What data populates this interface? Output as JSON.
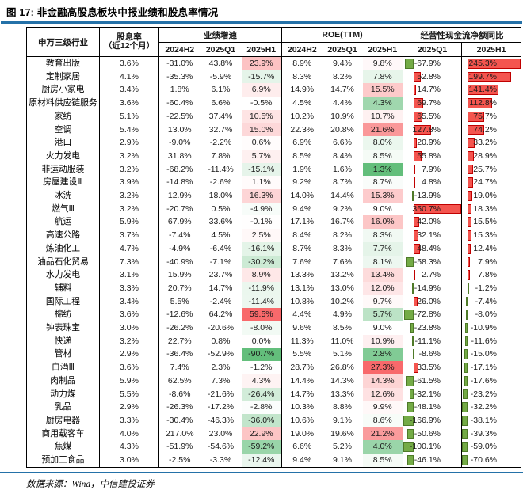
{
  "figure": {
    "title": "图 17: 非金融高股息板块中报业绩和股息率情况",
    "source": "数据来源：Wind，中信建投证券"
  },
  "table": {
    "header": {
      "industry": "申万三级行业",
      "yield_line1": "股息率",
      "yield_line2": "（近12个月）",
      "growth_group": "业绩增速",
      "roe_group": "ROE(TTM)",
      "cashflow_group": "经营性现金流净额同比",
      "growth_periods": [
        "2024H2",
        "2025Q1",
        "2025H1"
      ],
      "roe_periods": [
        "2024H2",
        "2025Q1",
        "2025H1"
      ],
      "cashflow_periods": [
        "2025Q1",
        "2025H1"
      ]
    }
  },
  "colors": {
    "rule_blue": "#2471A8",
    "scale_high": "#F8696B",
    "scale_mid": "#FFFFFF",
    "scale_low": "#63BE7B",
    "bar_positive_fill": "#F4554F",
    "bar_positive_border": "#C00000",
    "bar_negative_fill": "#74AB46",
    "bar_negative_border": "#4E7A28",
    "bar_axis": "#8a8a8a"
  },
  "chart_data": {
    "type": "table",
    "title": "图 17: 非金融高股息板块中报业绩和股息率情况",
    "columns": [
      "申万三级行业",
      "股息率（近12个月）",
      "业绩增速 2024H2",
      "业绩增速 2025Q1",
      "业绩增速 2025H1",
      "ROE(TTM) 2024H2",
      "ROE(TTM) 2025Q1",
      "ROE(TTM) 2025H1",
      "经营性现金流净额同比 2025Q1",
      "经营性现金流净额同比 2025H1"
    ],
    "unit": "%",
    "conditional_formatting": {
      "color_scale_columns": [
        "业绩增速 2025H1",
        "ROE(TTM) 2025H1"
      ],
      "data_bar_columns": [
        "经营性现金流净额同比 2025Q1",
        "经营性现金流净额同比 2025H1"
      ]
    },
    "rows": [
      {
        "name": "教育出版",
        "yield": 3.6,
        "growth": [
          -31.0,
          43.8,
          23.9
        ],
        "roe": [
          8.9,
          9.4,
          9.8
        ],
        "cash": [
          -67.9,
          245.3
        ]
      },
      {
        "name": "定制家居",
        "yield": 4.1,
        "growth": [
          -35.3,
          -5.9,
          -15.7
        ],
        "roe": [
          8.3,
          8.2,
          7.8
        ],
        "cash": [
          52.8,
          199.7
        ]
      },
      {
        "name": "厨房小家电",
        "yield": 3.4,
        "growth": [
          1.8,
          6.1,
          6.9
        ],
        "roe": [
          14.9,
          14.7,
          15.5
        ],
        "cash": [
          14.7,
          141.4
        ]
      },
      {
        "name": "原材料供应链服务",
        "yield": 3.6,
        "growth": [
          -60.4,
          6.6,
          -0.5
        ],
        "roe": [
          4.5,
          4.4,
          4.3
        ],
        "cash": [
          69.7,
          112.8
        ]
      },
      {
        "name": "家纺",
        "yield": 5.1,
        "growth": [
          -22.5,
          37.4,
          10.5
        ],
        "roe": [
          10.2,
          10.9,
          10.7
        ],
        "cash": [
          65.5,
          75.7
        ]
      },
      {
        "name": "空调",
        "yield": 5.4,
        "growth": [
          13.0,
          32.7,
          15.0
        ],
        "roe": [
          22.3,
          20.8,
          21.6
        ],
        "cash": [
          127.8,
          74.2
        ]
      },
      {
        "name": "港口",
        "yield": 2.9,
        "growth": [
          -9.0,
          -2.2,
          0.6
        ],
        "roe": [
          6.9,
          6.6,
          8.0
        ],
        "cash": [
          20.9,
          33.2
        ]
      },
      {
        "name": "火力发电",
        "yield": 3.2,
        "growth": [
          31.8,
          7.8,
          5.7
        ],
        "roe": [
          8.5,
          8.4,
          8.5
        ],
        "cash": [
          55.8,
          28.9
        ]
      },
      {
        "name": "非运动服装",
        "yield": 3.2,
        "growth": [
          -68.2,
          -11.4,
          -15.1
        ],
        "roe": [
          1.9,
          1.6,
          1.3
        ],
        "cash": [
          7.9,
          25.7
        ]
      },
      {
        "name": "房屋建设Ⅲ",
        "yield": 3.9,
        "growth": [
          -14.8,
          -2.6,
          1.1
        ],
        "roe": [
          9.2,
          8.7,
          8.7
        ],
        "cash": [
          4.8,
          24.7
        ]
      },
      {
        "name": "冰洗",
        "yield": 3.2,
        "growth": [
          12.9,
          18.0,
          16.3
        ],
        "roe": [
          14.0,
          14.4,
          15.3
        ],
        "cash": [
          -13.9,
          19.0
        ]
      },
      {
        "name": "燃气Ⅲ",
        "yield": 3.2,
        "growth": [
          -20.7,
          0.5,
          -4.9
        ],
        "roe": [
          9.4,
          9.2,
          9.0
        ],
        "cash": [
          350.7,
          18.3
        ]
      },
      {
        "name": "航运",
        "yield": 5.9,
        "growth": [
          67.9,
          33.6,
          -0.1
        ],
        "roe": [
          17.1,
          16.7,
          16.0
        ],
        "cash": [
          42.0,
          15.5
        ]
      },
      {
        "name": "高速公路",
        "yield": 3.7,
        "growth": [
          -7.4,
          4.5,
          2.5
        ],
        "roe": [
          8.4,
          8.2,
          8.3
        ],
        "cash": [
          32.1,
          15.3
        ]
      },
      {
        "name": "炼油化工",
        "yield": 4.7,
        "growth": [
          -4.9,
          -6.4,
          -16.1
        ],
        "roe": [
          8.7,
          8.3,
          7.7
        ],
        "cash": [
          48.4,
          12.4
        ]
      },
      {
        "name": "油品石化贸易",
        "yield": 7.3,
        "growth": [
          -40.9,
          -7.1,
          -30.2
        ],
        "roe": [
          7.6,
          7.6,
          8.1
        ],
        "cash": [
          -58.3,
          7.9
        ]
      },
      {
        "name": "水力发电",
        "yield": 3.1,
        "growth": [
          15.9,
          23.7,
          8.9
        ],
        "roe": [
          13.3,
          13.2,
          13.4
        ],
        "cash": [
          2.7,
          7.8
        ]
      },
      {
        "name": "辅料",
        "yield": 3.3,
        "growth": [
          20.7,
          14.7,
          -11.9
        ],
        "roe": [
          13.1,
          13.0,
          12.0
        ],
        "cash": [
          -14.9,
          -1.2
        ]
      },
      {
        "name": "国际工程",
        "yield": 3.4,
        "growth": [
          5.5,
          -2.4,
          -11.4
        ],
        "roe": [
          10.8,
          10.2,
          9.7
        ],
        "cash": [
          26.0,
          -7.4
        ]
      },
      {
        "name": "棉纺",
        "yield": 3.6,
        "growth": [
          -12.6,
          64.2,
          59.5
        ],
        "roe": [
          4.4,
          4.9,
          5.7
        ],
        "cash": [
          -72.8,
          -8.0
        ]
      },
      {
        "name": "钟表珠宝",
        "yield": 3.0,
        "growth": [
          -26.2,
          -20.6,
          -8.0
        ],
        "roe": [
          9.6,
          8.5,
          9.0
        ],
        "cash": [
          -23.8,
          -10.9
        ]
      },
      {
        "name": "快递",
        "yield": 3.2,
        "growth": [
          22.7,
          0.8,
          0.0
        ],
        "roe": [
          11.3,
          11.0,
          10.9
        ],
        "cash": [
          -11.1,
          -11.6
        ]
      },
      {
        "name": "管材",
        "yield": 2.9,
        "growth": [
          -36.4,
          -52.9,
          -90.7
        ],
        "roe": [
          5.5,
          5.1,
          2.8
        ],
        "cash": [
          -8.6,
          -15.0
        ]
      },
      {
        "name": "白酒Ⅲ",
        "yield": 3.6,
        "growth": [
          7.4,
          2.3,
          -1.2
        ],
        "roe": [
          28.7,
          26.8,
          27.3
        ],
        "cash": [
          33.5,
          -17.1
        ]
      },
      {
        "name": "肉制品",
        "yield": 5.9,
        "growth": [
          62.5,
          7.3,
          4.3
        ],
        "roe": [
          14.4,
          14.3,
          14.3
        ],
        "cash": [
          -61.5,
          -17.6
        ]
      },
      {
        "name": "动力煤",
        "yield": 5.5,
        "growth": [
          -8.6,
          -21.6,
          -26.4
        ],
        "roe": [
          14.7,
          13.3,
          12.6
        ],
        "cash": [
          -32.1,
          -23.2
        ]
      },
      {
        "name": "乳品",
        "yield": 2.9,
        "growth": [
          -26.3,
          -17.2,
          -2.8
        ],
        "roe": [
          10.3,
          8.8,
          9.9
        ],
        "cash": [
          -48.1,
          -32.2
        ]
      },
      {
        "name": "厨房电器",
        "yield": 3.3,
        "growth": [
          -30.4,
          -46.3,
          -36.0
        ],
        "roe": [
          10.6,
          9.1,
          8.6
        ],
        "cash": [
          -166.9,
          -38.1
        ]
      },
      {
        "name": "商用载客车",
        "yield": 4.0,
        "growth": [
          217.0,
          23.0,
          22.9
        ],
        "roe": [
          19.0,
          19.6,
          21.2
        ],
        "cash": [
          -50.6,
          -39.3
        ]
      },
      {
        "name": "焦煤",
        "yield": 4.3,
        "growth": [
          -51.9,
          -54.6,
          -59.2
        ],
        "roe": [
          6.6,
          5.2,
          4.0
        ],
        "cash": [
          -100.1,
          -59.0
        ]
      },
      {
        "name": "预加工食品",
        "yield": 3.0,
        "growth": [
          -2.5,
          -3.3,
          -12.4
        ],
        "roe": [
          9.4,
          9.1,
          8.5
        ],
        "cash": [
          -46.1,
          -70.6
        ]
      }
    ]
  }
}
